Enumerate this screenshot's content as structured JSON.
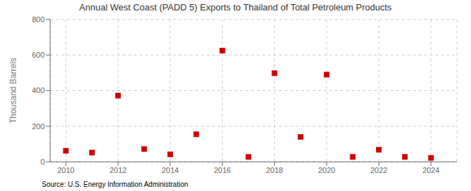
{
  "chart_data": {
    "type": "scatter",
    "title": "Annual West Coast (PADD 5) Exports to Thailand of Total Petroleum Products",
    "ylabel": "Thousand Barrels",
    "annotation": "Source: U.S. Energy Information Administration",
    "x": [
      2010,
      2011,
      2012,
      2013,
      2014,
      2015,
      2016,
      2017,
      2018,
      2019,
      2020,
      2021,
      2022,
      2023,
      2024
    ],
    "values": [
      62,
      52,
      372,
      72,
      42,
      155,
      625,
      28,
      498,
      140,
      490,
      28,
      68,
      28,
      22
    ],
    "color": "#cc0000",
    "marker": "square",
    "xlim": [
      2009.4,
      2025.0
    ],
    "ylim": [
      0,
      800
    ],
    "xticks": [
      2010,
      2012,
      2014,
      2016,
      2018,
      2020,
      2022,
      2024
    ],
    "yticks": [
      0,
      200,
      400,
      600,
      800
    ],
    "grid": true
  }
}
